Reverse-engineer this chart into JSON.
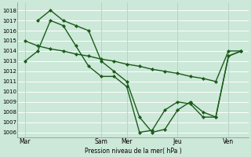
{
  "bg_color": "#cce8d8",
  "grid_color": "#ffffff",
  "line_color": "#1a5c1a",
  "marker": "D",
  "marker_size": 2.0,
  "line_width": 1.0,
  "xlabel": "Pression niveau de la mer( hPa )",
  "ylim": [
    1005.5,
    1018.8
  ],
  "xlim": [
    -0.3,
    8.8
  ],
  "yticks": [
    1006,
    1007,
    1008,
    1009,
    1010,
    1011,
    1012,
    1013,
    1014,
    1015,
    1016,
    1017,
    1018
  ],
  "xtick_labels": [
    "Mar",
    "Sam",
    "Mer",
    "Jeu",
    "Ven"
  ],
  "xtick_positions": [
    0,
    3,
    4,
    6,
    8
  ],
  "series": [
    {
      "x": [
        0,
        0.5,
        1.0,
        1.5,
        2.0,
        2.5,
        3.0,
        3.5,
        4.0,
        4.5,
        5.0,
        5.5,
        6.0,
        6.5,
        7.0,
        7.5,
        8.0,
        8.5
      ],
      "y": [
        1013,
        1014,
        1017,
        1016.5,
        1014.5,
        1012.5,
        1011.5,
        1011.5,
        1010.5,
        1006,
        1006.2,
        1008.2,
        1009,
        1008.8,
        1007.5,
        1007.5,
        1013.5,
        1014
      ]
    },
    {
      "x": [
        0.5,
        1.0,
        1.5,
        2.0,
        2.5,
        3.0,
        3.5,
        4.0,
        4.5,
        5.0,
        5.5,
        6.0,
        6.5,
        7.0,
        7.5,
        8.0,
        8.5
      ],
      "y": [
        1017,
        1018,
        1017,
        1016.5,
        1016,
        1013,
        1012,
        1011,
        1007.5,
        1006,
        1006.3,
        1008.2,
        1009,
        1008,
        1007.5,
        1013.5,
        1014
      ]
    },
    {
      "x": [
        0,
        0.5,
        1.0,
        1.5,
        2.0,
        2.5,
        3.0,
        3.5,
        4.0,
        4.5,
        5.0,
        5.5,
        6.0,
        6.5,
        7.0,
        7.5,
        8.0,
        8.5
      ],
      "y": [
        1015,
        1014.5,
        1014.2,
        1014.0,
        1013.7,
        1013.5,
        1013.2,
        1013.0,
        1012.7,
        1012.5,
        1012.2,
        1012.0,
        1011.8,
        1011.5,
        1011.3,
        1011.0,
        1014.0,
        1014.0
      ]
    }
  ]
}
